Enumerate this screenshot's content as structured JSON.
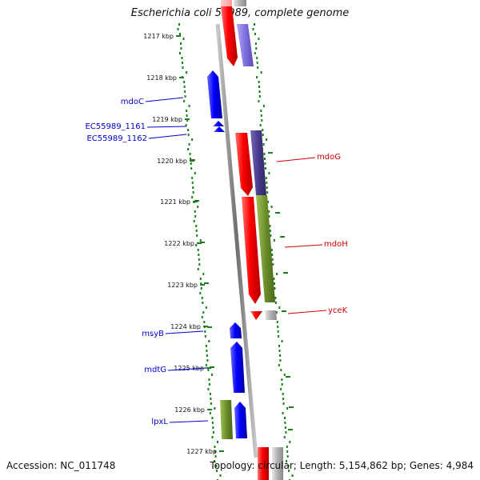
{
  "title": "Escherichia coli 55989, complete genome",
  "footer": {
    "accession": "Accession: NC_011748",
    "summary": "Topology: circular; Length: 5,154,862 bp; Genes: 4,984"
  },
  "ticks": [
    "1217 kbp",
    "1218 kbp",
    "1219 kbp",
    "1220 kbp",
    "1221 kbp",
    "1222 kbp",
    "1223 kbp",
    "1224 kbp",
    "1225 kbp",
    "1226 kbp",
    "1227 kbp"
  ],
  "labels_left": [
    {
      "name": "mdoC",
      "color": "#0000cc"
    },
    {
      "name": "EC55989_1161",
      "color": "#0000cc"
    },
    {
      "name": "EC55989_1162",
      "color": "#0000cc"
    },
    {
      "name": "msyB",
      "color": "#0000cc"
    },
    {
      "name": "mdtG",
      "color": "#0000cc"
    },
    {
      "name": "lpxL",
      "color": "#0000cc"
    }
  ],
  "labels_right": [
    {
      "name": "mdoG",
      "color": "#cc0000"
    },
    {
      "name": "mdoH",
      "color": "#cc0000"
    },
    {
      "name": "yceK",
      "color": "#cc0000"
    }
  ],
  "colors": {
    "forward_gene": "#ff0000",
    "reverse_gene": "#0000ff",
    "cog_purple": "#7f6fe0",
    "cog_dark": "#4a3a8c",
    "cog_olive": "#6b8f2a",
    "cog_gray": "#b0b0b0",
    "gc_ring": "#1a7f1a",
    "backbone": "#808080"
  }
}
